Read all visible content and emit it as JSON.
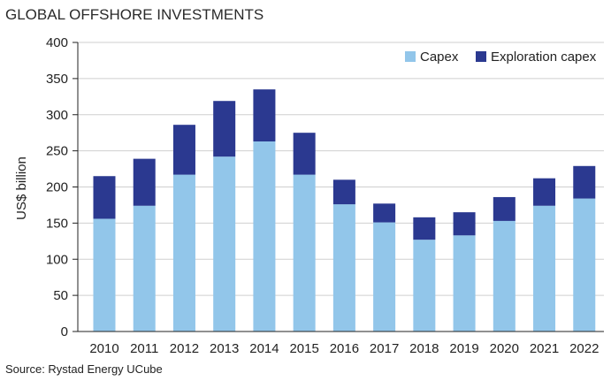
{
  "chart_data": {
    "type": "bar",
    "stacked": true,
    "title": "GLOBAL OFFSHORE INVESTMENTS",
    "ylabel": "US$ billion",
    "xlabel": "",
    "source": "Source: Rystad Energy UCube",
    "ylim": [
      0,
      400
    ],
    "yticks": [
      0,
      50,
      100,
      150,
      200,
      250,
      300,
      350,
      400
    ],
    "grid": true,
    "legend_position": "top-right",
    "categories": [
      "2010",
      "2011",
      "2012",
      "2013",
      "2014",
      "2015",
      "2016",
      "2017",
      "2018",
      "2019",
      "2020",
      "2021",
      "2022"
    ],
    "series": [
      {
        "name": "Capex",
        "color": "#92c6ea",
        "values": [
          156,
          174,
          217,
          242,
          263,
          217,
          176,
          151,
          127,
          133,
          153,
          174,
          184
        ]
      },
      {
        "name": "Exploration capex",
        "color": "#2b3990",
        "values": [
          59,
          65,
          69,
          77,
          72,
          58,
          34,
          26,
          31,
          32,
          33,
          38,
          45
        ]
      }
    ]
  }
}
